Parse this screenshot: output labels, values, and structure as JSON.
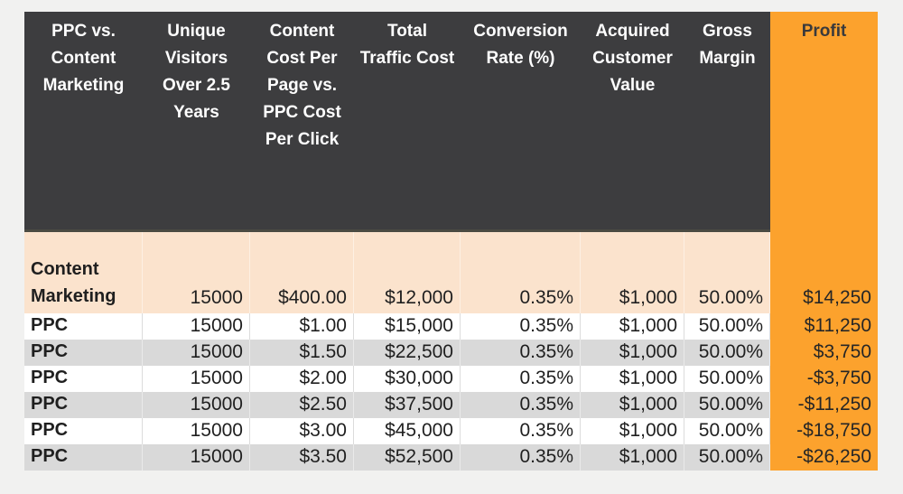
{
  "colors": {
    "background": "#F1F1F0",
    "header_bg": "#3D3D3F",
    "header_text": "#FFFFFF",
    "profit_bg": "#FCA22D",
    "peach_bg": "#FBE3CD",
    "stripe_bg": "#D9D9D9",
    "white_bg": "#FFFFFF",
    "data_text": "#1F1F1F"
  },
  "table": {
    "columns": [
      {
        "label": "PPC vs. Content Marketing"
      },
      {
        "label": "Unique Visitors Over 2.5 Years"
      },
      {
        "label": "Content Cost Per Page vs. PPC Cost Per Click"
      },
      {
        "label": "Total Traffic Cost"
      },
      {
        "label": "Conversion Rate (%)"
      },
      {
        "label": "Acquired Customer Value"
      },
      {
        "label": "Gross Margin"
      },
      {
        "label": "Profit"
      }
    ],
    "rows": [
      {
        "label": "Content Marketing",
        "values": [
          "15000",
          "$400.00",
          "$12,000",
          "0.35%",
          "$1,000",
          "50.00%",
          "$14,250"
        ]
      },
      {
        "label": "PPC",
        "values": [
          "15000",
          "$1.00",
          "$15,000",
          "0.35%",
          "$1,000",
          "50.00%",
          "$11,250"
        ]
      },
      {
        "label": "PPC",
        "values": [
          "15000",
          "$1.50",
          "$22,500",
          "0.35%",
          "$1,000",
          "50.00%",
          "$3,750"
        ]
      },
      {
        "label": "PPC",
        "values": [
          "15000",
          "$2.00",
          "$30,000",
          "0.35%",
          "$1,000",
          "50.00%",
          "-$3,750"
        ]
      },
      {
        "label": "PPC",
        "values": [
          "15000",
          "$2.50",
          "$37,500",
          "0.35%",
          "$1,000",
          "50.00%",
          "-$11,250"
        ]
      },
      {
        "label": "PPC",
        "values": [
          "15000",
          "$3.00",
          "$45,000",
          "0.35%",
          "$1,000",
          "50.00%",
          "-$18,750"
        ]
      },
      {
        "label": "PPC",
        "values": [
          "15000",
          "$3.50",
          "$52,500",
          "0.35%",
          "$1,000",
          "50.00%",
          "-$26,250"
        ]
      }
    ]
  },
  "chart_data": {
    "type": "table",
    "title": "PPC vs. Content Marketing",
    "columns": [
      "PPC vs. Content Marketing",
      "Unique Visitors Over 2.5 Years",
      "Content Cost Per Page vs. PPC Cost Per Click",
      "Total Traffic Cost",
      "Conversion Rate (%)",
      "Acquired Customer Value",
      "Gross Margin",
      "Profit"
    ],
    "rows": [
      [
        "Content Marketing",
        15000,
        400.0,
        12000,
        0.0035,
        1000,
        0.5,
        14250
      ],
      [
        "PPC",
        15000,
        1.0,
        15000,
        0.0035,
        1000,
        0.5,
        11250
      ],
      [
        "PPC",
        15000,
        1.5,
        22500,
        0.0035,
        1000,
        0.5,
        3750
      ],
      [
        "PPC",
        15000,
        2.0,
        30000,
        0.0035,
        1000,
        0.5,
        -3750
      ],
      [
        "PPC",
        15000,
        2.5,
        37500,
        0.0035,
        1000,
        0.5,
        -11250
      ],
      [
        "PPC",
        15000,
        3.0,
        45000,
        0.0035,
        1000,
        0.5,
        -18750
      ],
      [
        "PPC",
        15000,
        3.5,
        52500,
        0.0035,
        1000,
        0.5,
        -26250
      ]
    ],
    "layout_hints": {
      "header_style": "dark-gray, white bold text, top-aligned, centered",
      "profit_column_style": "orange fill full height",
      "body_style": "banded rows white/gray, first data row peach, values right-aligned"
    }
  }
}
